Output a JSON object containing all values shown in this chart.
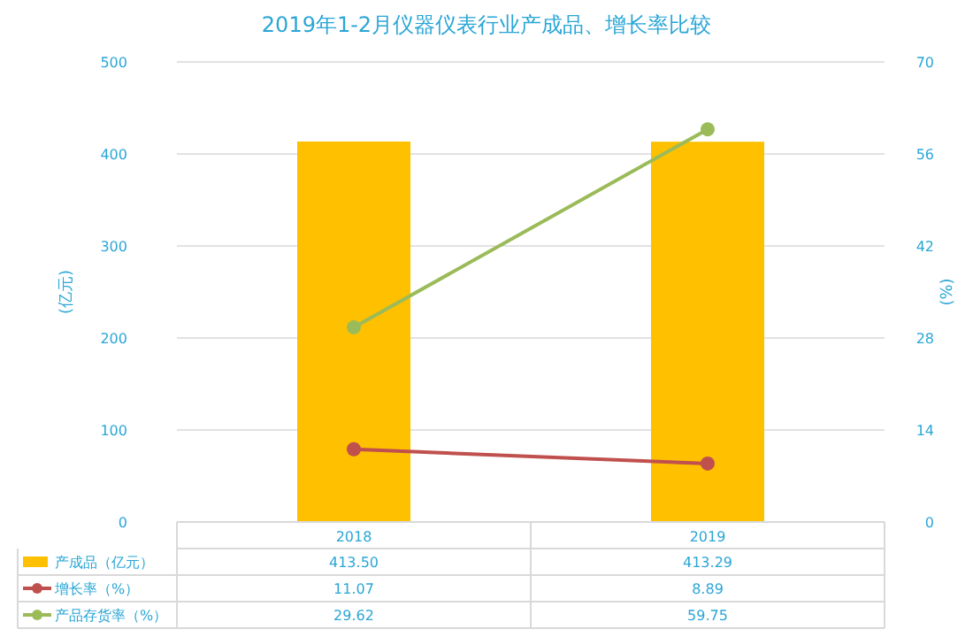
{
  "chart_data": {
    "type": "bar",
    "title": "2019年1-2月仪器仪表行业产成品、增长率比较",
    "categories": [
      "2018",
      "2019"
    ],
    "series": [
      {
        "name": "产成品（亿元）",
        "color": "#ffc000",
        "values": [
          413.5,
          413.29
        ],
        "value_labels": [
          "413.50",
          "413.29"
        ]
      },
      {
        "name": "增长率（%）",
        "type": "line",
        "axis": "y2",
        "color": "#c0504d",
        "values": [
          11.07,
          8.89
        ],
        "value_labels": [
          "11.07",
          "8.89"
        ]
      },
      {
        "name": "产品存货率（%）",
        "type": "line",
        "axis": "y2",
        "color": "#9bbb59",
        "values": [
          29.62,
          59.75
        ],
        "value_labels": [
          "29.62",
          "59.75"
        ]
      }
    ],
    "ylabel": "(亿元)",
    "y2label": "(%)",
    "ylim": [
      0,
      500
    ],
    "yticks": [
      0,
      100,
      200,
      300,
      400,
      500
    ],
    "y2lim": [
      0,
      70
    ],
    "y2ticks": [
      0,
      14,
      28,
      42,
      56,
      70
    ],
    "grid": "y",
    "legend": "bottom",
    "marker": "circle"
  }
}
